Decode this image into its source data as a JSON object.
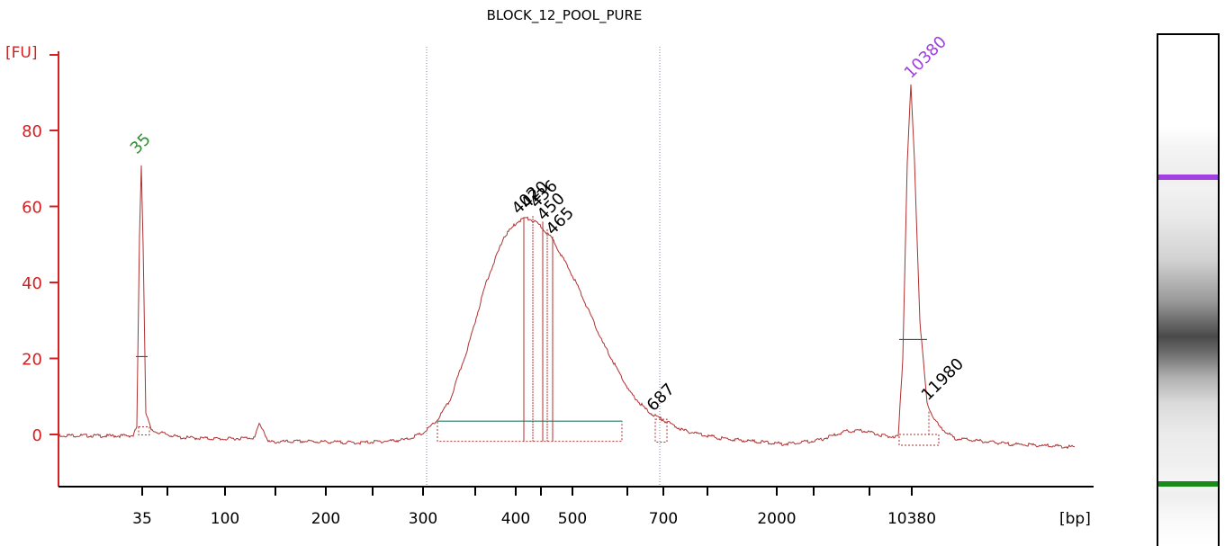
{
  "chart_data": {
    "type": "line",
    "title": "BLOCK_12_POOL_PURE",
    "ylabel": "[FU]",
    "xlabel": "[bp]",
    "ylim": [
      -13,
      100
    ],
    "y_ticks": [
      0,
      20,
      40,
      60,
      80
    ],
    "x_ticks": [
      "35",
      "100",
      "200",
      "300",
      "400",
      "500",
      "700",
      "2000",
      "10380"
    ],
    "line_color": "#b03030",
    "axis_color": "#d42020",
    "series": [
      {
        "points": [
          {
            "x": "35",
            "y": 71
          },
          {
            "x": "~70",
            "y": 3
          },
          {
            "x": "300",
            "y": 0
          },
          {
            "x": "350",
            "y": 23
          },
          {
            "x": "420",
            "y": 57
          },
          {
            "x": "465",
            "y": 52
          },
          {
            "x": "550",
            "y": 22
          },
          {
            "x": "687",
            "y": 4
          },
          {
            "x": "1000",
            "y": -2
          },
          {
            "x": "5000",
            "y": 1
          },
          {
            "x": "10380",
            "y": 92
          },
          {
            "x": "11980",
            "y": 4
          }
        ]
      }
    ],
    "peak_labels": [
      {
        "label": "35",
        "color": "#2f8f2f"
      },
      {
        "label": "402",
        "color": "#000000"
      },
      {
        "label": "420",
        "color": "#000000"
      },
      {
        "label": "436",
        "color": "#000000"
      },
      {
        "label": "450",
        "color": "#000000"
      },
      {
        "label": "465",
        "color": "#000000"
      },
      {
        "label": "687",
        "color": "#000000"
      },
      {
        "label": "10380",
        "color": "#a040e0"
      },
      {
        "label": "11980",
        "color": "#000000"
      }
    ],
    "region_markers": [
      "300",
      "700"
    ],
    "gel_bands": [
      {
        "label": "10380",
        "color": "#a040e0"
      },
      {
        "label": "35",
        "color": "#1a8a1a"
      }
    ]
  }
}
